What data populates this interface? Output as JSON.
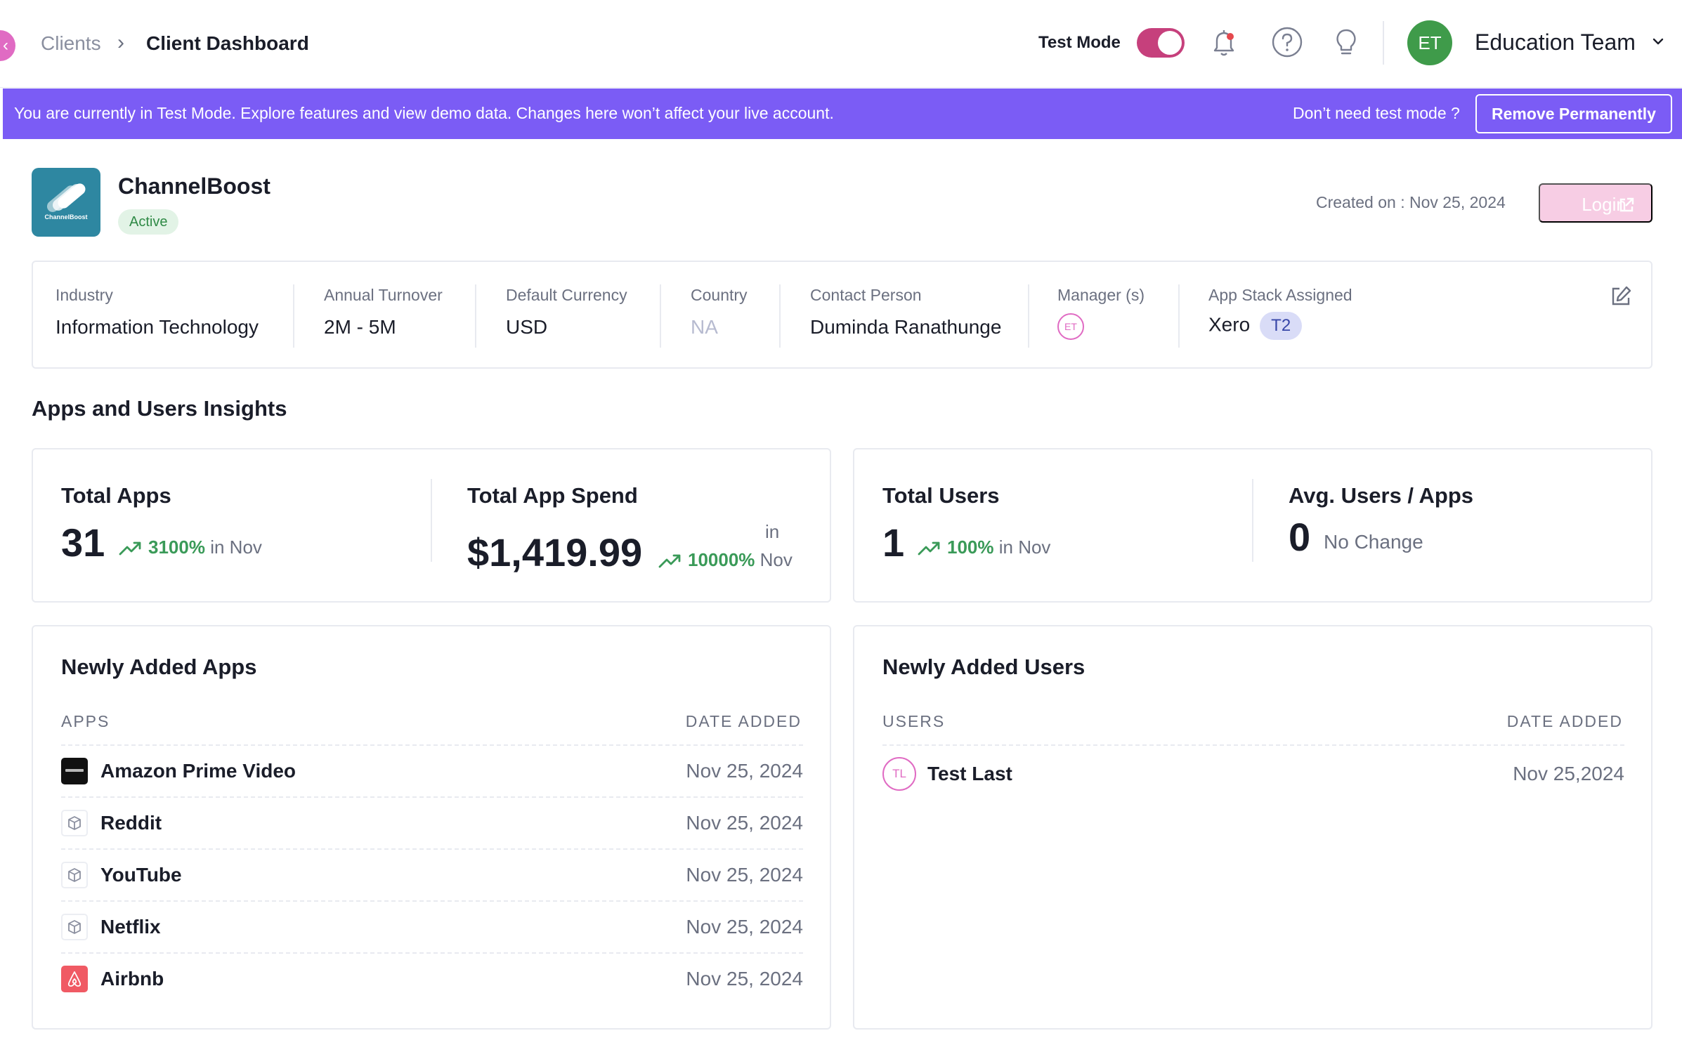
{
  "breadcrumb": {
    "parent": "Clients",
    "separator": "›",
    "current": "Client Dashboard"
  },
  "header": {
    "test_mode_label": "Test Mode",
    "test_mode_on": true,
    "avatar_initials": "ET",
    "team_name": "Education Team"
  },
  "banner": {
    "message": "You are currently in Test Mode. Explore features and view demo data. Changes here won’t affect your live account.",
    "question": "Don’t need test mode ?",
    "remove_label": "Remove Permanently"
  },
  "client": {
    "logo_text": "ChannelBoost",
    "name": "ChannelBoost",
    "status": "Active",
    "created_on": "Created on : Nov 25, 2024",
    "login_label": "Login"
  },
  "info": {
    "industry": {
      "label": "Industry",
      "value": "Information Technology"
    },
    "turnover": {
      "label": "Annual Turnover",
      "value": "2M - 5M"
    },
    "currency": {
      "label": "Default Currency",
      "value": "USD"
    },
    "country": {
      "label": "Country",
      "value": "NA"
    },
    "contact": {
      "label": "Contact Person",
      "value": "Duminda Ranathunge"
    },
    "manager": {
      "label": "Manager (s)",
      "badge": "ET"
    },
    "app_stack": {
      "label": "App Stack Assigned",
      "value": "Xero",
      "badge": "T2"
    }
  },
  "insights": {
    "title": "Apps and Users Insights",
    "total_apps": {
      "title": "Total Apps",
      "value": "31",
      "pct": "3100%",
      "suffix": "in Nov"
    },
    "total_spend": {
      "title": "Total App Spend",
      "value": "$1,419.99",
      "pct": "10000%",
      "suffix_top": "in",
      "suffix_bottom": "Nov"
    },
    "total_users": {
      "title": "Total Users",
      "value": "1",
      "pct": "100%",
      "suffix": "in Nov"
    },
    "avg_users": {
      "title": "Avg. Users / Apps",
      "value": "0",
      "note": "No Change"
    }
  },
  "new_apps": {
    "title": "Newly Added Apps",
    "col_name": "APPS",
    "col_date": "DATE ADDED",
    "rows": [
      {
        "name": "Amazon Prime Video",
        "date": "Nov 25, 2024",
        "icon": "prime-video-icon"
      },
      {
        "name": "Reddit",
        "date": "Nov 25, 2024",
        "icon": "cube-icon"
      },
      {
        "name": "YouTube",
        "date": "Nov 25, 2024",
        "icon": "cube-icon"
      },
      {
        "name": "Netflix",
        "date": "Nov 25, 2024",
        "icon": "cube-icon"
      },
      {
        "name": "Airbnb",
        "date": "Nov 25, 2024",
        "icon": "airbnb-icon"
      }
    ]
  },
  "new_users": {
    "title": "Newly Added Users",
    "col_name": "USERS",
    "col_date": "DATE ADDED",
    "rows": [
      {
        "initials": "TL",
        "name": "Test Last",
        "date": "Nov 25,2024"
      }
    ]
  },
  "colors": {
    "accent": "#7b5cf5",
    "toggle": "#c6407c",
    "positive": "#3a9a58",
    "avatar": "#3f9b4a"
  }
}
